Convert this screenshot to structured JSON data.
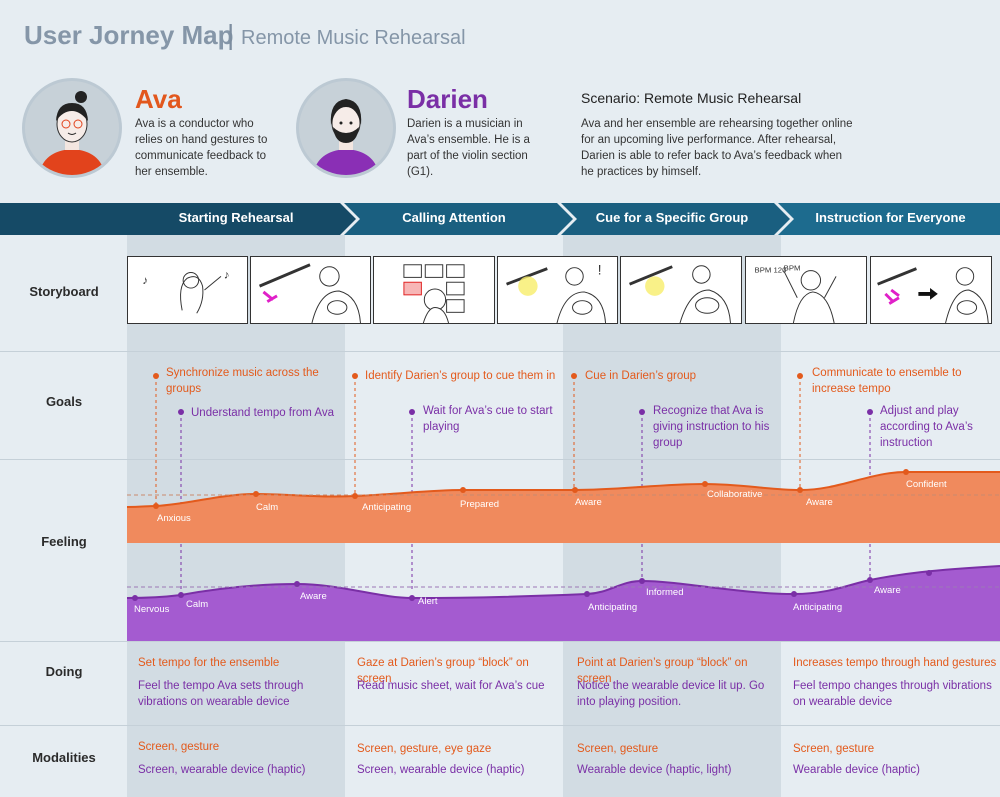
{
  "header": {
    "title": "User Jorney Map",
    "subtitle": "Remote Music Rehearsal"
  },
  "personas": [
    {
      "name": "Ava",
      "description": "Ava is a conductor who relies on hand gestures to communicate feedback to her ensemble.",
      "color": "#e2571d"
    },
    {
      "name": "Darien",
      "description": "Darien is a musician in Ava’s ensemble. He is a part of the violin section (G1).",
      "color": "#7a2fa6"
    }
  ],
  "scenario": {
    "title": "Scenario: Remote Music Rehearsal",
    "text": "Ava and her ensemble are rehearsing together online for an upcoming live performance. After rehearsal, Darien is able to refer back to Ava’s feedback when he practices by himself."
  },
  "phases": [
    "Starting Rehearsal",
    "Calling Attention",
    "Cue for a Specific Group",
    "Instruction for Everyone"
  ],
  "rows": {
    "storyboard": "Storyboard",
    "goals": "Goals",
    "feeling": "Feeling",
    "doing": "Doing",
    "modalities": "Modalities"
  },
  "goals": [
    {
      "ava": "Synchronize music across the groups",
      "darien": "Understand tempo from Ava"
    },
    {
      "ava": "Identify Darien’s group to cue them in",
      "darien": "Wait for Ava’s cue to start playing"
    },
    {
      "ava": "Cue in Darien’s group",
      "darien": "Recognize that Ava is giving instruction to his group"
    },
    {
      "ava": "Communicate to ensemble to increase tempo",
      "darien": "Adjust and play according to Ava’s instruction"
    }
  ],
  "feelings": {
    "ava": [
      "Anxious",
      "Calm",
      "Anticipating",
      "Prepared",
      "Aware",
      "Collaborative",
      "Aware",
      "Confident"
    ],
    "darien": [
      "Nervous",
      "Calm",
      "Aware",
      "Alert",
      "Anticipating",
      "Informed",
      "Anticipating",
      "Aware"
    ]
  },
  "doing": [
    {
      "ava": "Set tempo for the ensemble",
      "darien": "Feel the tempo Ava sets through vibrations on wearable device"
    },
    {
      "ava": "Gaze at Darien’s group “block” on screen",
      "darien": "Read music sheet, wait for Ava’s cue"
    },
    {
      "ava": "Point at Darien’s group “block” on screen",
      "darien": "Notice the wearable device lit up. Go into playing position."
    },
    {
      "ava": "Increases tempo through hand gestures",
      "darien": "Feel tempo changes through vibrations on wearable device"
    }
  ],
  "modalities": [
    {
      "ava": "Screen, gesture",
      "darien": "Screen, wearable device (haptic)"
    },
    {
      "ava": "Screen, gesture, eye gaze",
      "darien": "Screen, wearable device (haptic)"
    },
    {
      "ava": "Screen, gesture",
      "darien": "Wearable device (haptic, light)"
    },
    {
      "ava": "Screen, gesture",
      "darien": "Wearable device (haptic)"
    }
  ],
  "colors": {
    "ava": "#e35a1c",
    "darien": "#7a2fa6",
    "ava_area": "#f08a5d",
    "darien_area": "#a45bd0",
    "phase_dark": "#154a66",
    "phase_light": "#1d6b8e"
  }
}
